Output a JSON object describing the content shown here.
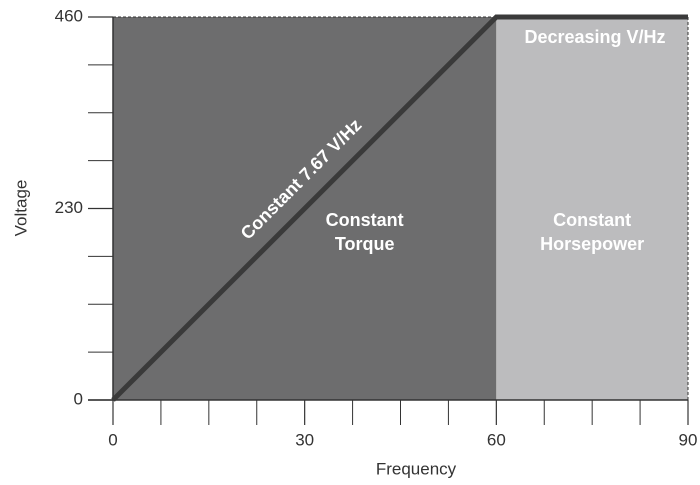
{
  "chart_data": {
    "type": "line",
    "x_label": "Frequency",
    "y_label": "Voltage",
    "x": [
      0,
      60,
      90
    ],
    "series": [
      {
        "name": "Voltage",
        "color": "#3a3a3a",
        "values": [
          0,
          460,
          460
        ]
      }
    ],
    "xlim": [
      0,
      90
    ],
    "ylim": [
      0,
      460
    ],
    "xticks": [
      0,
      30,
      60,
      90
    ],
    "yticks": [
      0,
      230,
      460
    ],
    "xminor_ticks": [
      7.5,
      15,
      22.5,
      37.5,
      45,
      52.5,
      67.5,
      75,
      82.5
    ],
    "yminor_ticks": [
      57.5,
      115,
      172.5,
      287.5,
      345,
      402.5
    ],
    "regions": [
      {
        "from": 0,
        "to": 60,
        "color": "#6d6d6e",
        "label": [
          "Constant",
          "Torque"
        ]
      },
      {
        "from": 60,
        "to": 90,
        "color": "#bcbcbe",
        "label": [
          "Constant",
          "Horsepower"
        ]
      }
    ],
    "line_annotation": "Constant 7.67 V/Hz",
    "top_annotation": "Decreasing V/Hz"
  }
}
